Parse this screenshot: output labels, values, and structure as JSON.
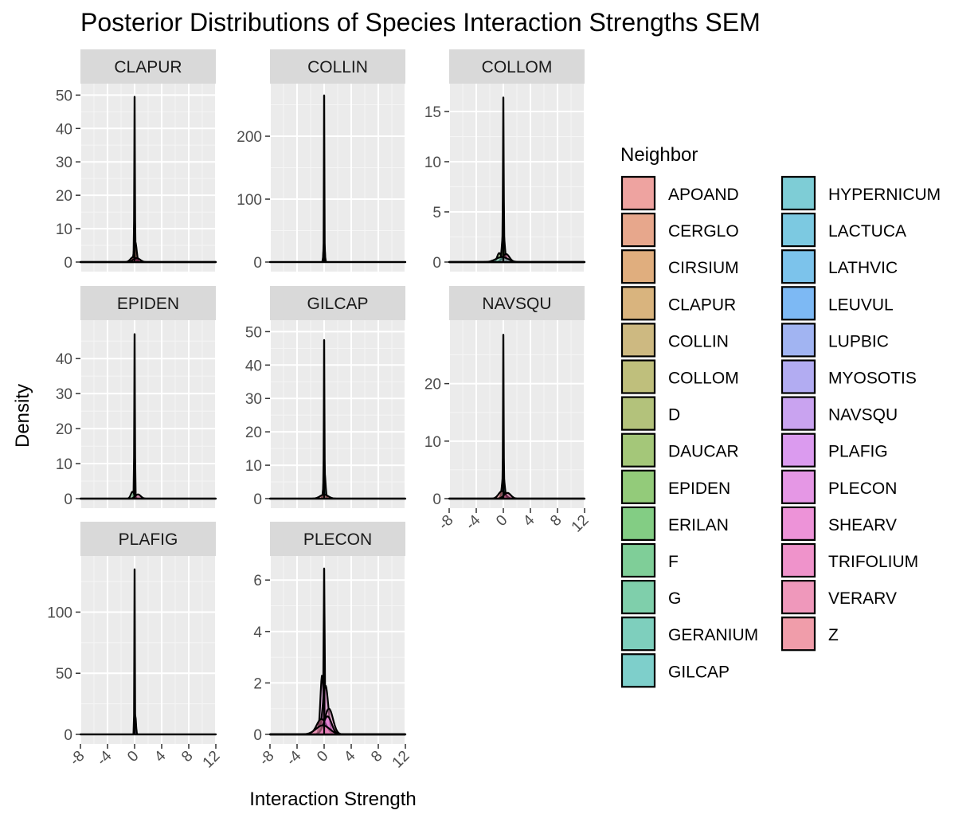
{
  "chart_data": {
    "type": "density",
    "title": "Posterior Distributions of Species Interaction Strengths SEM",
    "xlabel": "Interaction Strength",
    "ylabel": "Density",
    "xlim": [
      -8,
      12
    ],
    "x_ticks": [
      -8,
      -4,
      0,
      4,
      8,
      12
    ],
    "x_tick_labels": [
      "-8",
      "-4",
      "0",
      "4",
      "8",
      "12"
    ],
    "grid": true,
    "facet_strip_color": "#d9d9d9",
    "panel_background": "#ebebeb",
    "facets": [
      {
        "name": "CLAPUR",
        "ylim": [
          0,
          52
        ],
        "y_ticks": [
          0,
          10,
          20,
          30,
          40,
          50
        ],
        "curves": [
          {
            "mu": 0.0,
            "sd": 0.05,
            "peak": 49.5
          },
          {
            "mu": 0.1,
            "sd": 0.2,
            "peak": 6
          },
          {
            "mu": -0.2,
            "sd": 0.4,
            "peak": 1.5,
            "fill": "#e87f88"
          },
          {
            "mu": 0.3,
            "sd": 0.5,
            "peak": 1.2,
            "fill": "#b5437a"
          }
        ]
      },
      {
        "name": "COLLIN",
        "ylim": [
          0,
          276
        ],
        "y_ticks": [
          0,
          100,
          200
        ],
        "curves": [
          {
            "mu": 0.0,
            "sd": 0.04,
            "peak": 265
          },
          {
            "mu": 0.0,
            "sd": 0.1,
            "peak": 30
          }
        ]
      },
      {
        "name": "COLLOM",
        "ylim": [
          0,
          17.3
        ],
        "y_ticks": [
          0,
          5,
          10,
          15
        ],
        "curves": [
          {
            "mu": 0.0,
            "sd": 0.06,
            "peak": 16.4
          },
          {
            "mu": 0.0,
            "sd": 0.2,
            "peak": 3
          },
          {
            "mu": -0.6,
            "sd": 0.3,
            "peak": 0.9,
            "fill": "#89c268"
          },
          {
            "mu": 0.4,
            "sd": 0.5,
            "peak": 0.8,
            "fill": "#e06d9b"
          },
          {
            "mu": -0.2,
            "sd": 0.9,
            "peak": 0.5,
            "fill": "#7fd0c8"
          }
        ]
      },
      {
        "name": "EPIDEN",
        "ylim": [
          0,
          49.6
        ],
        "y_ticks": [
          0,
          10,
          20,
          30,
          40
        ],
        "curves": [
          {
            "mu": 0.0,
            "sd": 0.05,
            "peak": 47
          },
          {
            "mu": -0.3,
            "sd": 0.25,
            "peak": 2
          },
          {
            "mu": 0.5,
            "sd": 0.4,
            "peak": 1.2,
            "fill": "#b5437a"
          }
        ]
      },
      {
        "name": "GILCAP",
        "ylim": [
          0,
          52
        ],
        "y_ticks": [
          0,
          10,
          20,
          30,
          40,
          50
        ],
        "curves": [
          {
            "mu": 0.0,
            "sd": 0.05,
            "peak": 47.5
          },
          {
            "mu": 0.05,
            "sd": 0.15,
            "peak": 8
          },
          {
            "mu": 0.0,
            "sd": 0.6,
            "peak": 1.2,
            "fill": "#e87f88"
          }
        ]
      },
      {
        "name": "NAVSQU",
        "ylim": [
          0,
          30.2
        ],
        "y_ticks": [
          0,
          10,
          20
        ],
        "curves": [
          {
            "mu": 0.0,
            "sd": 0.05,
            "peak": 28.5
          },
          {
            "mu": 0.0,
            "sd": 0.2,
            "peak": 4
          },
          {
            "mu": -0.2,
            "sd": 0.5,
            "peak": 1.3,
            "fill": "#e87f88"
          },
          {
            "mu": 0.6,
            "sd": 0.5,
            "peak": 1.0,
            "fill": "#b5437a"
          }
        ]
      },
      {
        "name": "PLAFIG",
        "ylim": [
          0,
          142
        ],
        "y_ticks": [
          0,
          50,
          100
        ],
        "curves": [
          {
            "mu": 0.0,
            "sd": 0.04,
            "peak": 135
          },
          {
            "mu": 0.1,
            "sd": 0.1,
            "peak": 16
          }
        ]
      },
      {
        "name": "PLECON",
        "ylim": [
          0,
          6.75
        ],
        "y_ticks": [
          0,
          2,
          4,
          6
        ],
        "curves": [
          {
            "mu": 0.0,
            "sd": 0.08,
            "peak": 6.45
          },
          {
            "mu": -0.3,
            "sd": 0.25,
            "peak": 2.3
          },
          {
            "mu": 0.2,
            "sd": 0.4,
            "peak": 1.9
          },
          {
            "mu": 0.7,
            "sd": 0.6,
            "peak": 1.0
          },
          {
            "mu": -0.4,
            "sd": 0.7,
            "peak": 0.6,
            "fill": "#e06d9b"
          },
          {
            "mu": 0.5,
            "sd": 0.6,
            "peak": 0.7,
            "fill": "#d96bcf"
          },
          {
            "mu": -0.2,
            "sd": 1.0,
            "peak": 0.35,
            "fill": "#f08cb2"
          }
        ]
      }
    ],
    "legend": {
      "title": "Neighbor",
      "position": "right",
      "items": [
        {
          "label": "APOAND",
          "color": "#EEA3A0"
        },
        {
          "label": "CERGLO",
          "color": "#E7A78C"
        },
        {
          "label": "CIRSIUM",
          "color": "#E0AE7E"
        },
        {
          "label": "CLAPUR",
          "color": "#D9B47E"
        },
        {
          "label": "COLLIN",
          "color": "#CDB981"
        },
        {
          "label": "COLLOM",
          "color": "#BFBF7C"
        },
        {
          "label": "D",
          "color": "#B3C27B"
        },
        {
          "label": "DAUCAR",
          "color": "#A4C779"
        },
        {
          "label": "EPIDEN",
          "color": "#93CB7A"
        },
        {
          "label": "ERILAN",
          "color": "#83CD84"
        },
        {
          "label": "F",
          "color": "#7FCE98"
        },
        {
          "label": "G",
          "color": "#7FCFAB"
        },
        {
          "label": "GERANIUM",
          "color": "#7ECFBD"
        },
        {
          "label": "GILCAP",
          "color": "#7ECFCB"
        },
        {
          "label": "HYPERNICUM",
          "color": "#7ECDD6"
        },
        {
          "label": "LACTUCA",
          "color": "#7CC9E1"
        },
        {
          "label": "LATHVIC",
          "color": "#7CC3EB"
        },
        {
          "label": "LEUVUL",
          "color": "#7DB9F4"
        },
        {
          "label": "LUPBIC",
          "color": "#A1B4F2"
        },
        {
          "label": "MYOSOTIS",
          "color": "#B2ACF2"
        },
        {
          "label": "NAVSQU",
          "color": "#C9A3F0"
        },
        {
          "label": "PLAFIG",
          "color": "#DB9BEF"
        },
        {
          "label": "PLECON",
          "color": "#E597E5"
        },
        {
          "label": "SHEARV",
          "color": "#ED93D8"
        },
        {
          "label": "TRIFOLIUM",
          "color": "#EF93CB"
        },
        {
          "label": "VERARV",
          "color": "#EF98BB"
        },
        {
          "label": "Z",
          "color": "#F09DAA"
        }
      ]
    }
  }
}
